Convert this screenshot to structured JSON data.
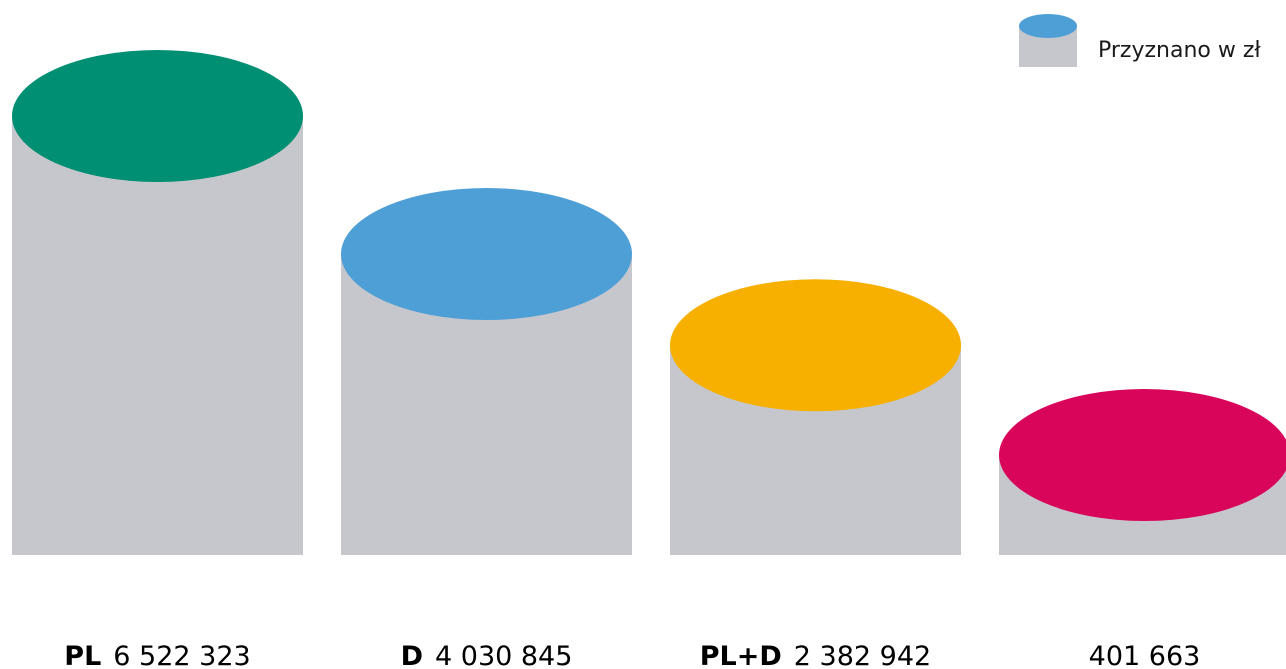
{
  "chart_data": {
    "type": "bar",
    "title": "",
    "xlabel": "",
    "ylabel": "",
    "ylim": [
      0,
      6522323
    ],
    "grid": false,
    "legend_position": "top-right",
    "legend": [
      {
        "label": "Przyznano w zł",
        "color": "#4f9fd7"
      }
    ],
    "bar_body_color": "#c5c7cc",
    "categories": [
      {
        "code": "PL",
        "value_text": "6 522 323",
        "color": "#008f73"
      },
      {
        "code": "D",
        "value_text": "4 030 845",
        "color": "#4f9fd7"
      },
      {
        "code": "PL+D",
        "value_text": "2 382 942",
        "color": "#f7b000"
      },
      {
        "code": "",
        "value_text": "401 663",
        "color": "#d9055b"
      }
    ],
    "values": [
      6522323,
      4030845,
      2382942,
      401663
    ]
  }
}
